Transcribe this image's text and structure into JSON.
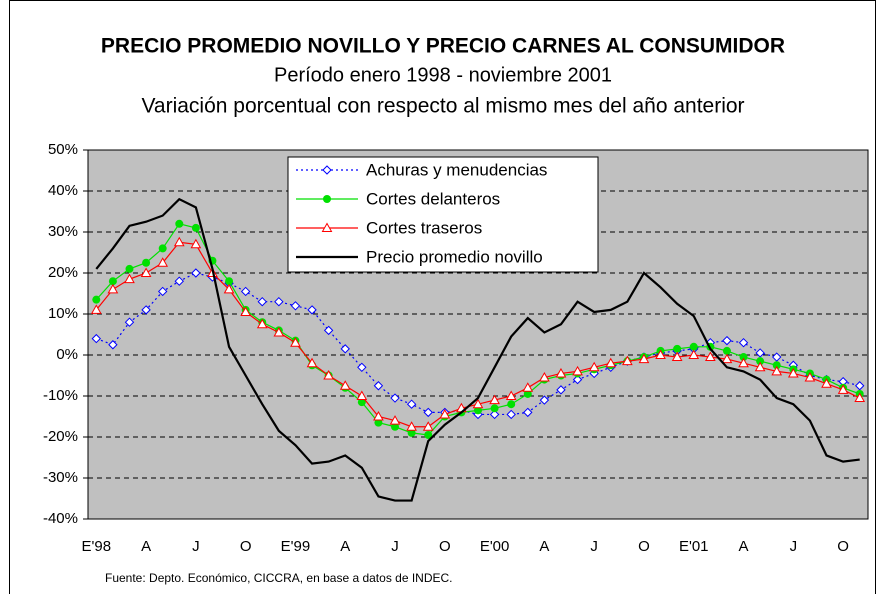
{
  "chart_data": {
    "type": "line",
    "title": "PRECIO PROMEDIO NOVILLO Y PRECIO CARNES AL CONSUMIDOR",
    "subtitle": "Período enero 1998 - noviembre 2001",
    "subtitle2": "Variación porcentual con respecto al mismo mes del año anterior",
    "source": "Fuente: Depto. Económico, CICCRA, en base a datos de INDEC.",
    "categories": [
      "E'98",
      null,
      null,
      "A",
      null,
      null,
      "J",
      null,
      null,
      "O",
      null,
      null,
      "E'99",
      null,
      null,
      "A",
      null,
      null,
      "J",
      null,
      null,
      "O",
      null,
      null,
      "E'00",
      null,
      null,
      "A",
      null,
      null,
      "J",
      null,
      null,
      "O",
      null,
      null,
      "E'01",
      null,
      null,
      "A",
      null,
      null,
      "J",
      null,
      null,
      "O",
      null
    ],
    "ylim": [
      -40,
      50
    ],
    "yticks": [
      {
        "value": -40,
        "label": "-40%"
      },
      {
        "value": -30,
        "label": "-30%"
      },
      {
        "value": -20,
        "label": "-20%"
      },
      {
        "value": -10,
        "label": "-10%"
      },
      {
        "value": 0,
        "label": "0%"
      },
      {
        "value": 10,
        "label": "10%"
      },
      {
        "value": 20,
        "label": "20%"
      },
      {
        "value": 30,
        "label": "30%"
      },
      {
        "value": 40,
        "label": "40%"
      },
      {
        "value": 50,
        "label": "50%"
      }
    ],
    "grid": true,
    "legend": "top",
    "series": [
      {
        "name": "Achuras y menudencias",
        "color": "#0000ff",
        "marker": "diamond",
        "dash": "dotted",
        "values": [
          4,
          2.5,
          8,
          11,
          15.5,
          18,
          20,
          19,
          17.5,
          15.5,
          13,
          13,
          12,
          11,
          6,
          1.5,
          -3,
          -7.5,
          -10.5,
          -12,
          -14,
          -14,
          -13.5,
          -14.5,
          -14.5,
          -14.5,
          -14,
          -11,
          -8.5,
          -6,
          -4.5,
          -3,
          -1.5,
          -0.5,
          0.5,
          1,
          1.5,
          3,
          3.5,
          3,
          0.5,
          -0.5,
          -2.5,
          -5,
          -6,
          -6.5,
          -7.5
        ]
      },
      {
        "name": "Cortes delanteros",
        "color": "#00e000",
        "marker": "circle",
        "dash": "solid",
        "values": [
          13.5,
          18,
          21,
          22.5,
          26,
          32,
          31,
          23,
          18,
          11,
          8,
          6,
          3.5,
          -2.5,
          -5,
          -8,
          -11.5,
          -16.5,
          -17.5,
          -19,
          -19.5,
          -15,
          -14,
          -13.5,
          -13,
          -12,
          -9.5,
          -6,
          -5,
          -4.5,
          -3.5,
          -2.5,
          -1.5,
          -0.5,
          1,
          1.5,
          2,
          2,
          1,
          -0.5,
          -1.5,
          -2.5,
          -3.5,
          -4.5,
          -6,
          -8,
          -9.5
        ]
      },
      {
        "name": "Cortes traseros",
        "color": "#ff0000",
        "marker": "triangle",
        "dash": "solid",
        "values": [
          11,
          16,
          18.5,
          20,
          22.5,
          27.5,
          27,
          20,
          16,
          10.5,
          7.5,
          5.5,
          3,
          -2,
          -5,
          -7.5,
          -10,
          -15,
          -16,
          -17.5,
          -17.5,
          -14.5,
          -13,
          -12,
          -11,
          -10,
          -8,
          -5.5,
          -4.5,
          -4,
          -3,
          -2,
          -1.5,
          -1,
          0,
          -0.5,
          0,
          -0.5,
          -1,
          -2,
          -3,
          -4,
          -4.5,
          -5.5,
          -7,
          -8.5,
          -10.5
        ]
      },
      {
        "name": "Precio promedio novillo",
        "color": "#000000",
        "marker": "none",
        "dash": "solid",
        "values": [
          21,
          26,
          31.5,
          32.5,
          34,
          38,
          36,
          21,
          2,
          -5,
          -12,
          -18.5,
          -22,
          -26.5,
          -26,
          -24.5,
          -27.5,
          -34.5,
          -35.5,
          -35.5,
          -21,
          -17,
          -14,
          -10.5,
          -3,
          4.5,
          9,
          5.5,
          7.5,
          13,
          10.5,
          11,
          13,
          20,
          16.5,
          12.5,
          9.5,
          1.5,
          -3,
          -4,
          -6,
          -10.5,
          -12,
          -16,
          -24.5,
          -26,
          -25.5
        ]
      }
    ]
  }
}
